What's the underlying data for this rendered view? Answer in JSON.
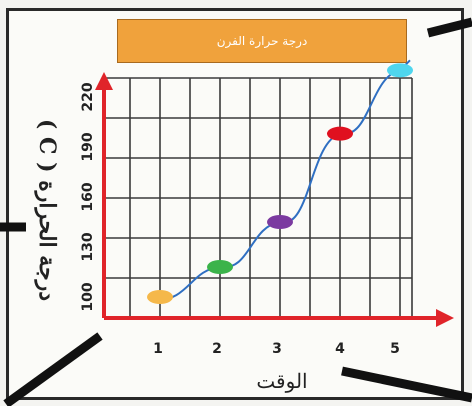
{
  "chart_data": {
    "type": "line",
    "title": "درجة حرارة الفرن",
    "xlabel": "الوقت",
    "ylabel": "درجة الحرارة ( C )",
    "x_ticks": [
      "1",
      "2",
      "3",
      "4",
      "5"
    ],
    "y_ticks": [
      "100",
      "130",
      "160",
      "190",
      "220"
    ],
    "series": [
      {
        "points": [
          {
            "x": 1,
            "y": 100
          },
          {
            "x": 2,
            "y": 118
          },
          {
            "x": 3,
            "y": 145
          },
          {
            "x": 4,
            "y": 198
          },
          {
            "x": 5,
            "y": 236
          }
        ]
      }
    ],
    "marker_colors": [
      "#f5b84a",
      "#3bb34a",
      "#7b3aa0",
      "#e0101f",
      "#4fd6ee"
    ],
    "line_color": "#2f6fc2",
    "axis_color": "#e0242a",
    "xlim": [
      0,
      5.7
    ],
    "ylim": [
      88,
      245
    ],
    "grid": true
  }
}
